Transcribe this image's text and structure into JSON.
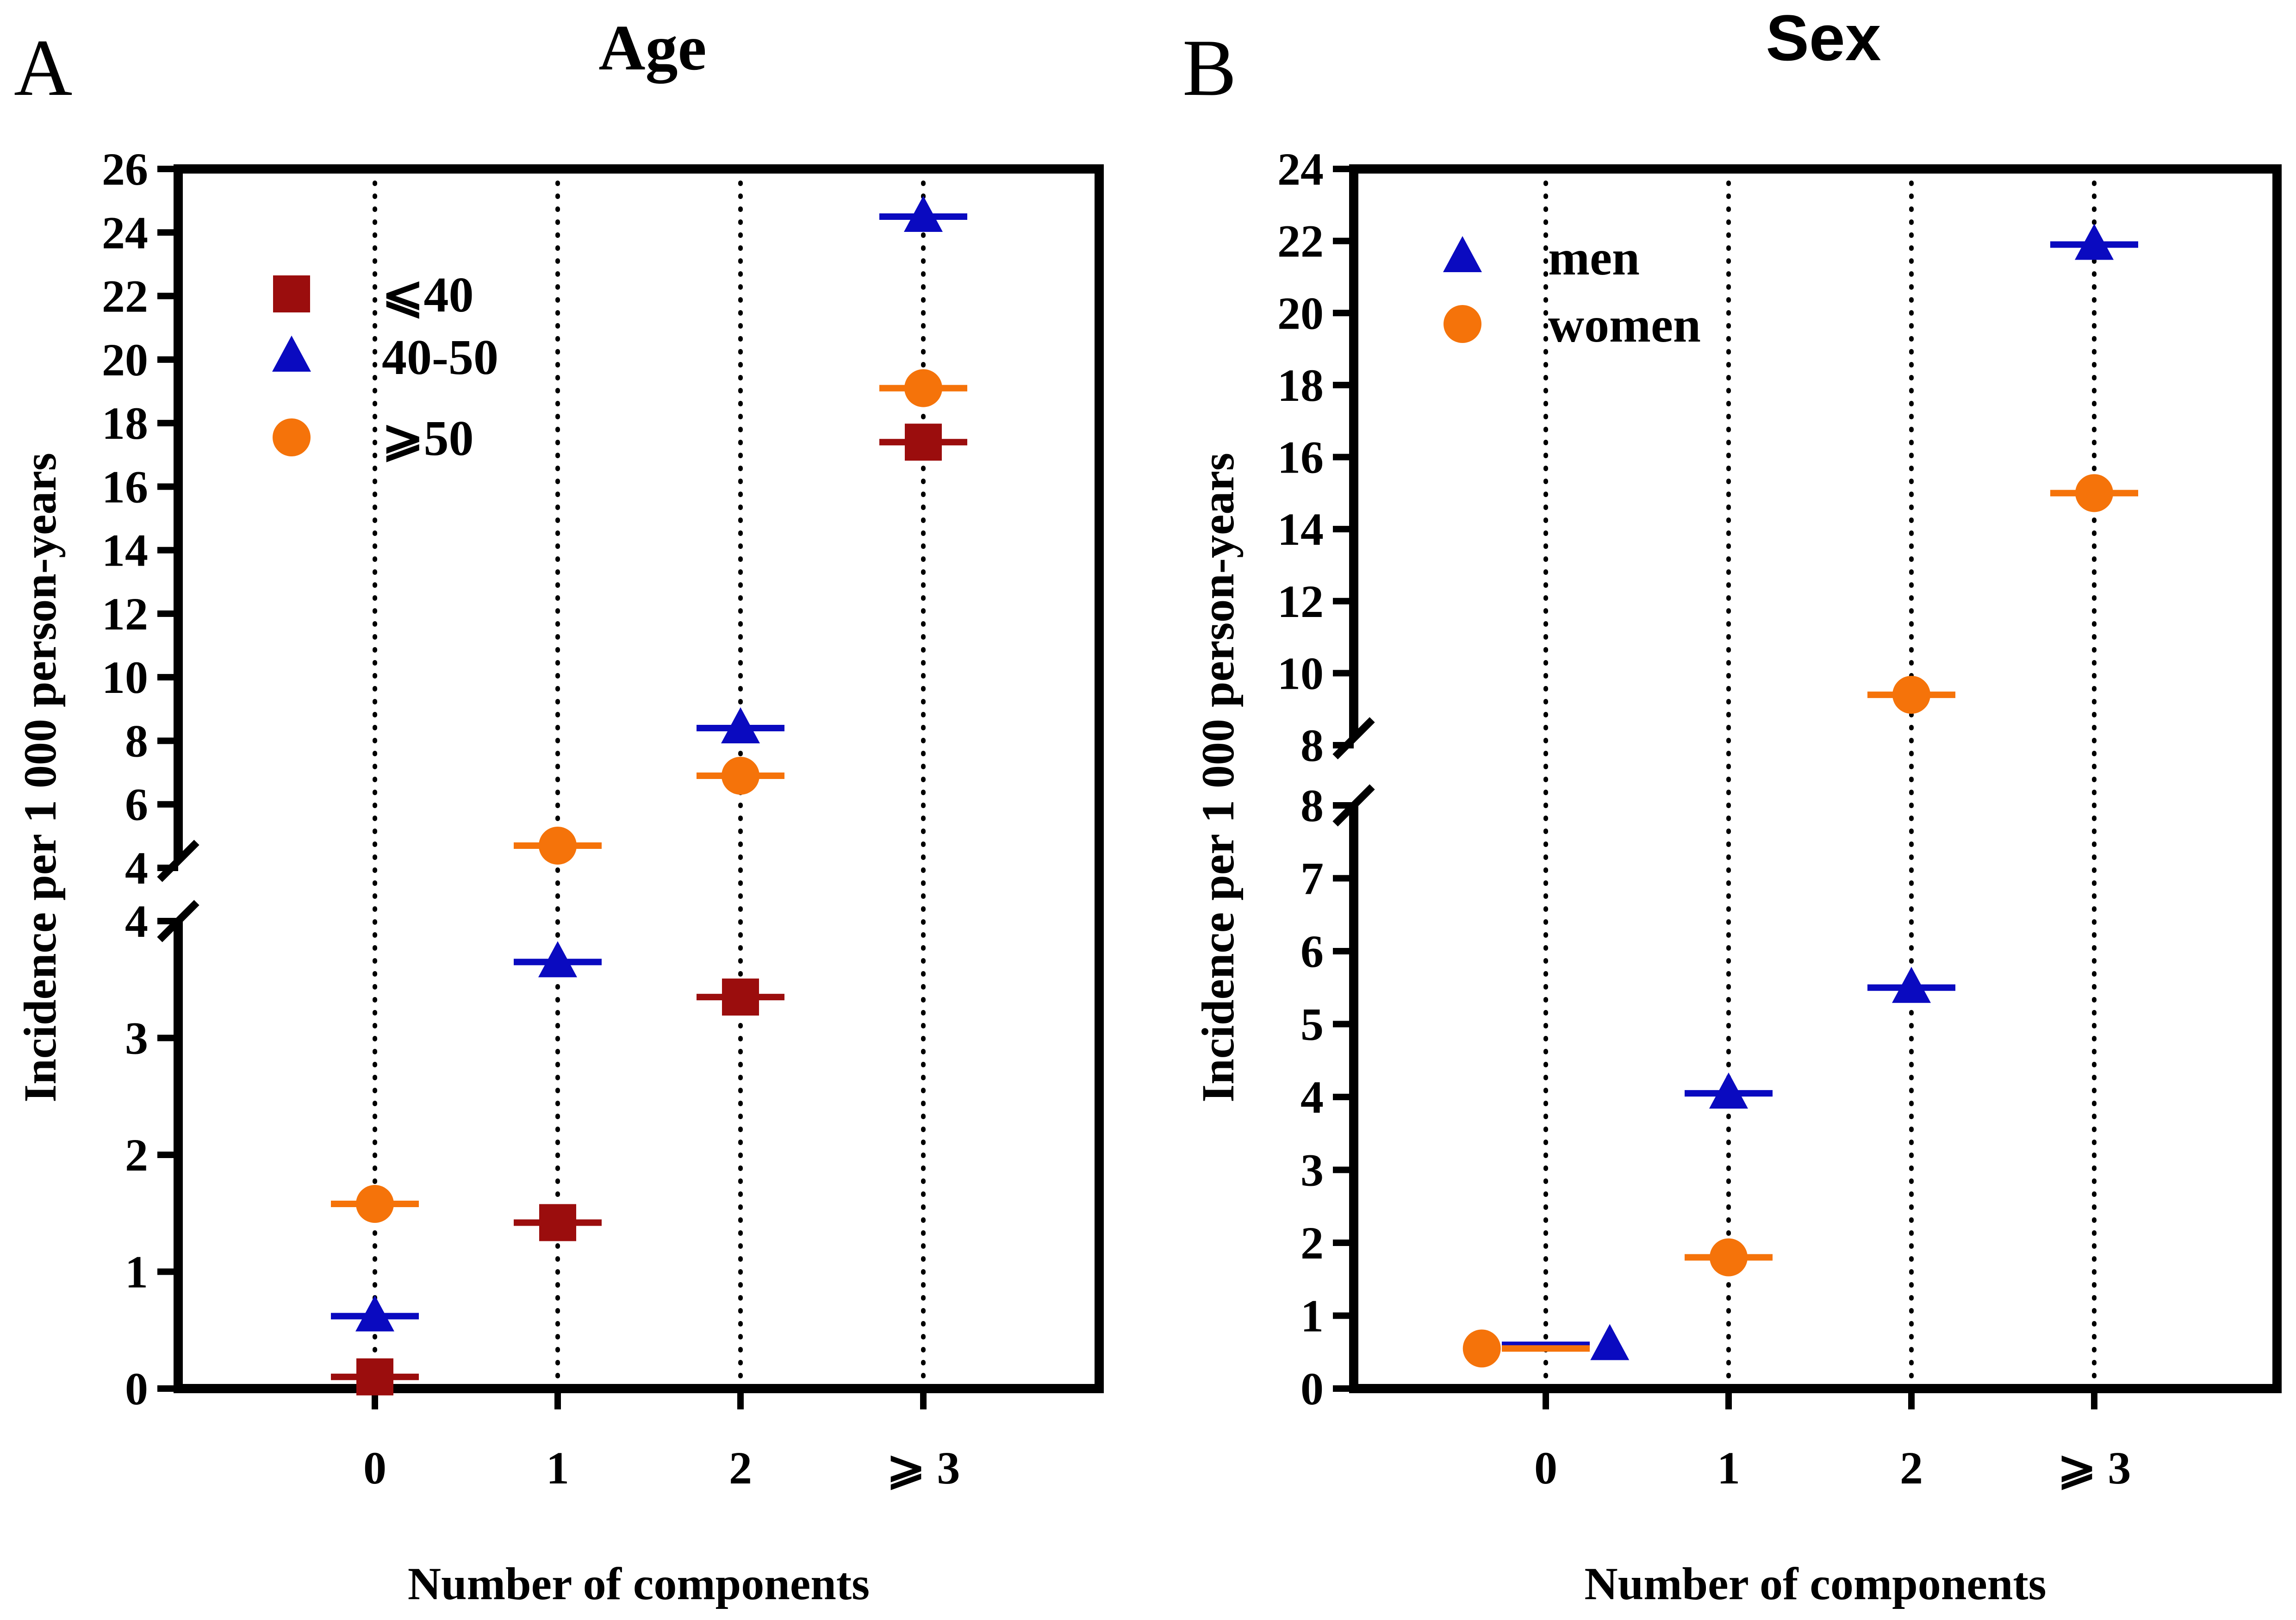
{
  "colors": {
    "le40": "#9b0d0d",
    "40_50": "#0a0ac0",
    "ge50": "#f5730a",
    "men": "#0a0ac0",
    "women": "#f5730a",
    "axis": "#000000"
  },
  "chart_data": [
    {
      "panel_letter": "A",
      "title": "Age",
      "type": "scatter",
      "xlabel": "Number of components",
      "ylabel": "Incidence per 1 000 person-years",
      "categories": [
        "0",
        "1",
        "2",
        "⩾ 3"
      ],
      "y_axis_break": {
        "lower_range": [
          0,
          4
        ],
        "upper_range": [
          4,
          26
        ]
      },
      "lower_ticks": [
        "0",
        "1",
        "2",
        "3",
        "4"
      ],
      "upper_ticks": [
        "4",
        "6",
        "8",
        "10",
        "12",
        "14",
        "16",
        "18",
        "20",
        "22",
        "24",
        "26"
      ],
      "legend": [
        {
          "label": "⩽40",
          "marker": "square",
          "color_key": "le40"
        },
        {
          "label": "40-50",
          "marker": "triangle",
          "color_key": "40_50"
        },
        {
          "label": "⩾50",
          "marker": "circle",
          "color_key": "ge50"
        }
      ],
      "series": [
        {
          "name": "⩽40",
          "marker": "square",
          "color_key": "le40",
          "values": [
            0.1,
            1.42,
            3.35,
            17.4
          ],
          "offsets": [
            0,
            0,
            0,
            0
          ]
        },
        {
          "name": "40-50",
          "marker": "triangle",
          "color_key": "40_50",
          "values": [
            0.62,
            3.65,
            8.4,
            24.5
          ],
          "offsets": [
            0,
            0,
            0,
            0
          ]
        },
        {
          "name": "⩾50",
          "marker": "circle",
          "color_key": "ge50",
          "values": [
            1.58,
            4.7,
            6.9,
            19.1
          ],
          "offsets": [
            0,
            0,
            0,
            0
          ]
        }
      ]
    },
    {
      "panel_letter": "B",
      "title": "Sex",
      "type": "scatter",
      "xlabel": "Number of components",
      "ylabel": "Incidence per 1 000 person-years",
      "categories": [
        "0",
        "1",
        "2",
        "⩾ 3"
      ],
      "y_axis_break": {
        "lower_range": [
          0,
          8
        ],
        "upper_range": [
          8,
          24
        ]
      },
      "lower_ticks": [
        "0",
        "1",
        "2",
        "3",
        "4",
        "5",
        "6",
        "7",
        "8"
      ],
      "upper_ticks": [
        "8",
        "10",
        "12",
        "14",
        "16",
        "18",
        "20",
        "22",
        "24"
      ],
      "legend": [
        {
          "label": "men",
          "marker": "triangle",
          "color_key": "men"
        },
        {
          "label": "women",
          "marker": "circle",
          "color_key": "women"
        }
      ],
      "series": [
        {
          "name": "men",
          "marker": "triangle",
          "color_key": "men",
          "values": [
            0.6,
            4.05,
            5.5,
            21.9
          ],
          "offsets": [
            0.35,
            0,
            0,
            0
          ]
        },
        {
          "name": "women",
          "marker": "circle",
          "color_key": "women",
          "values": [
            0.55,
            1.8,
            9.4,
            15.0
          ],
          "offsets": [
            -0.35,
            0,
            0,
            0
          ]
        }
      ]
    }
  ]
}
